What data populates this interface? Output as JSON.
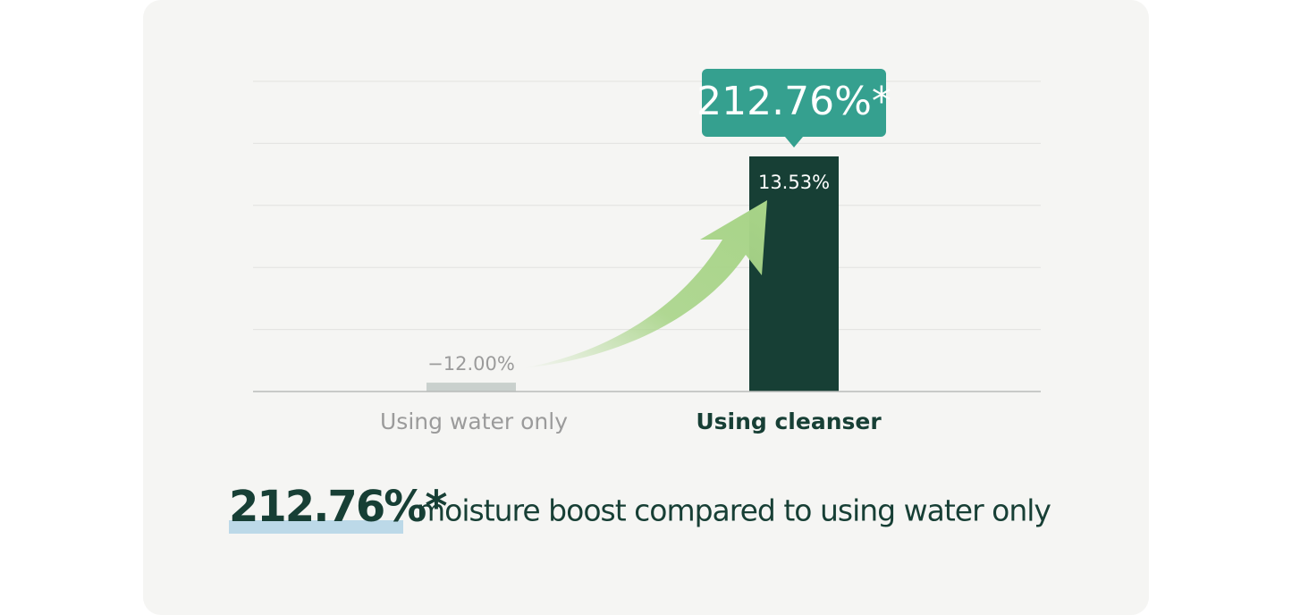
{
  "chart_data": {
    "type": "bar",
    "categories": [
      "Using water only",
      "Using cleanser"
    ],
    "values": [
      -12.0,
      13.53
    ],
    "value_labels": [
      "−12.00%",
      "13.53%"
    ],
    "colors": [
      "#c9d0cd",
      "#173f35"
    ],
    "label_colors": [
      "#9b9b9b",
      "#173f35"
    ],
    "ylim": [
      -13,
      22
    ],
    "callout": "212.76%*",
    "headline": {
      "highlight": "212.76%*",
      "text": "moisture boost compared to using water only"
    }
  }
}
